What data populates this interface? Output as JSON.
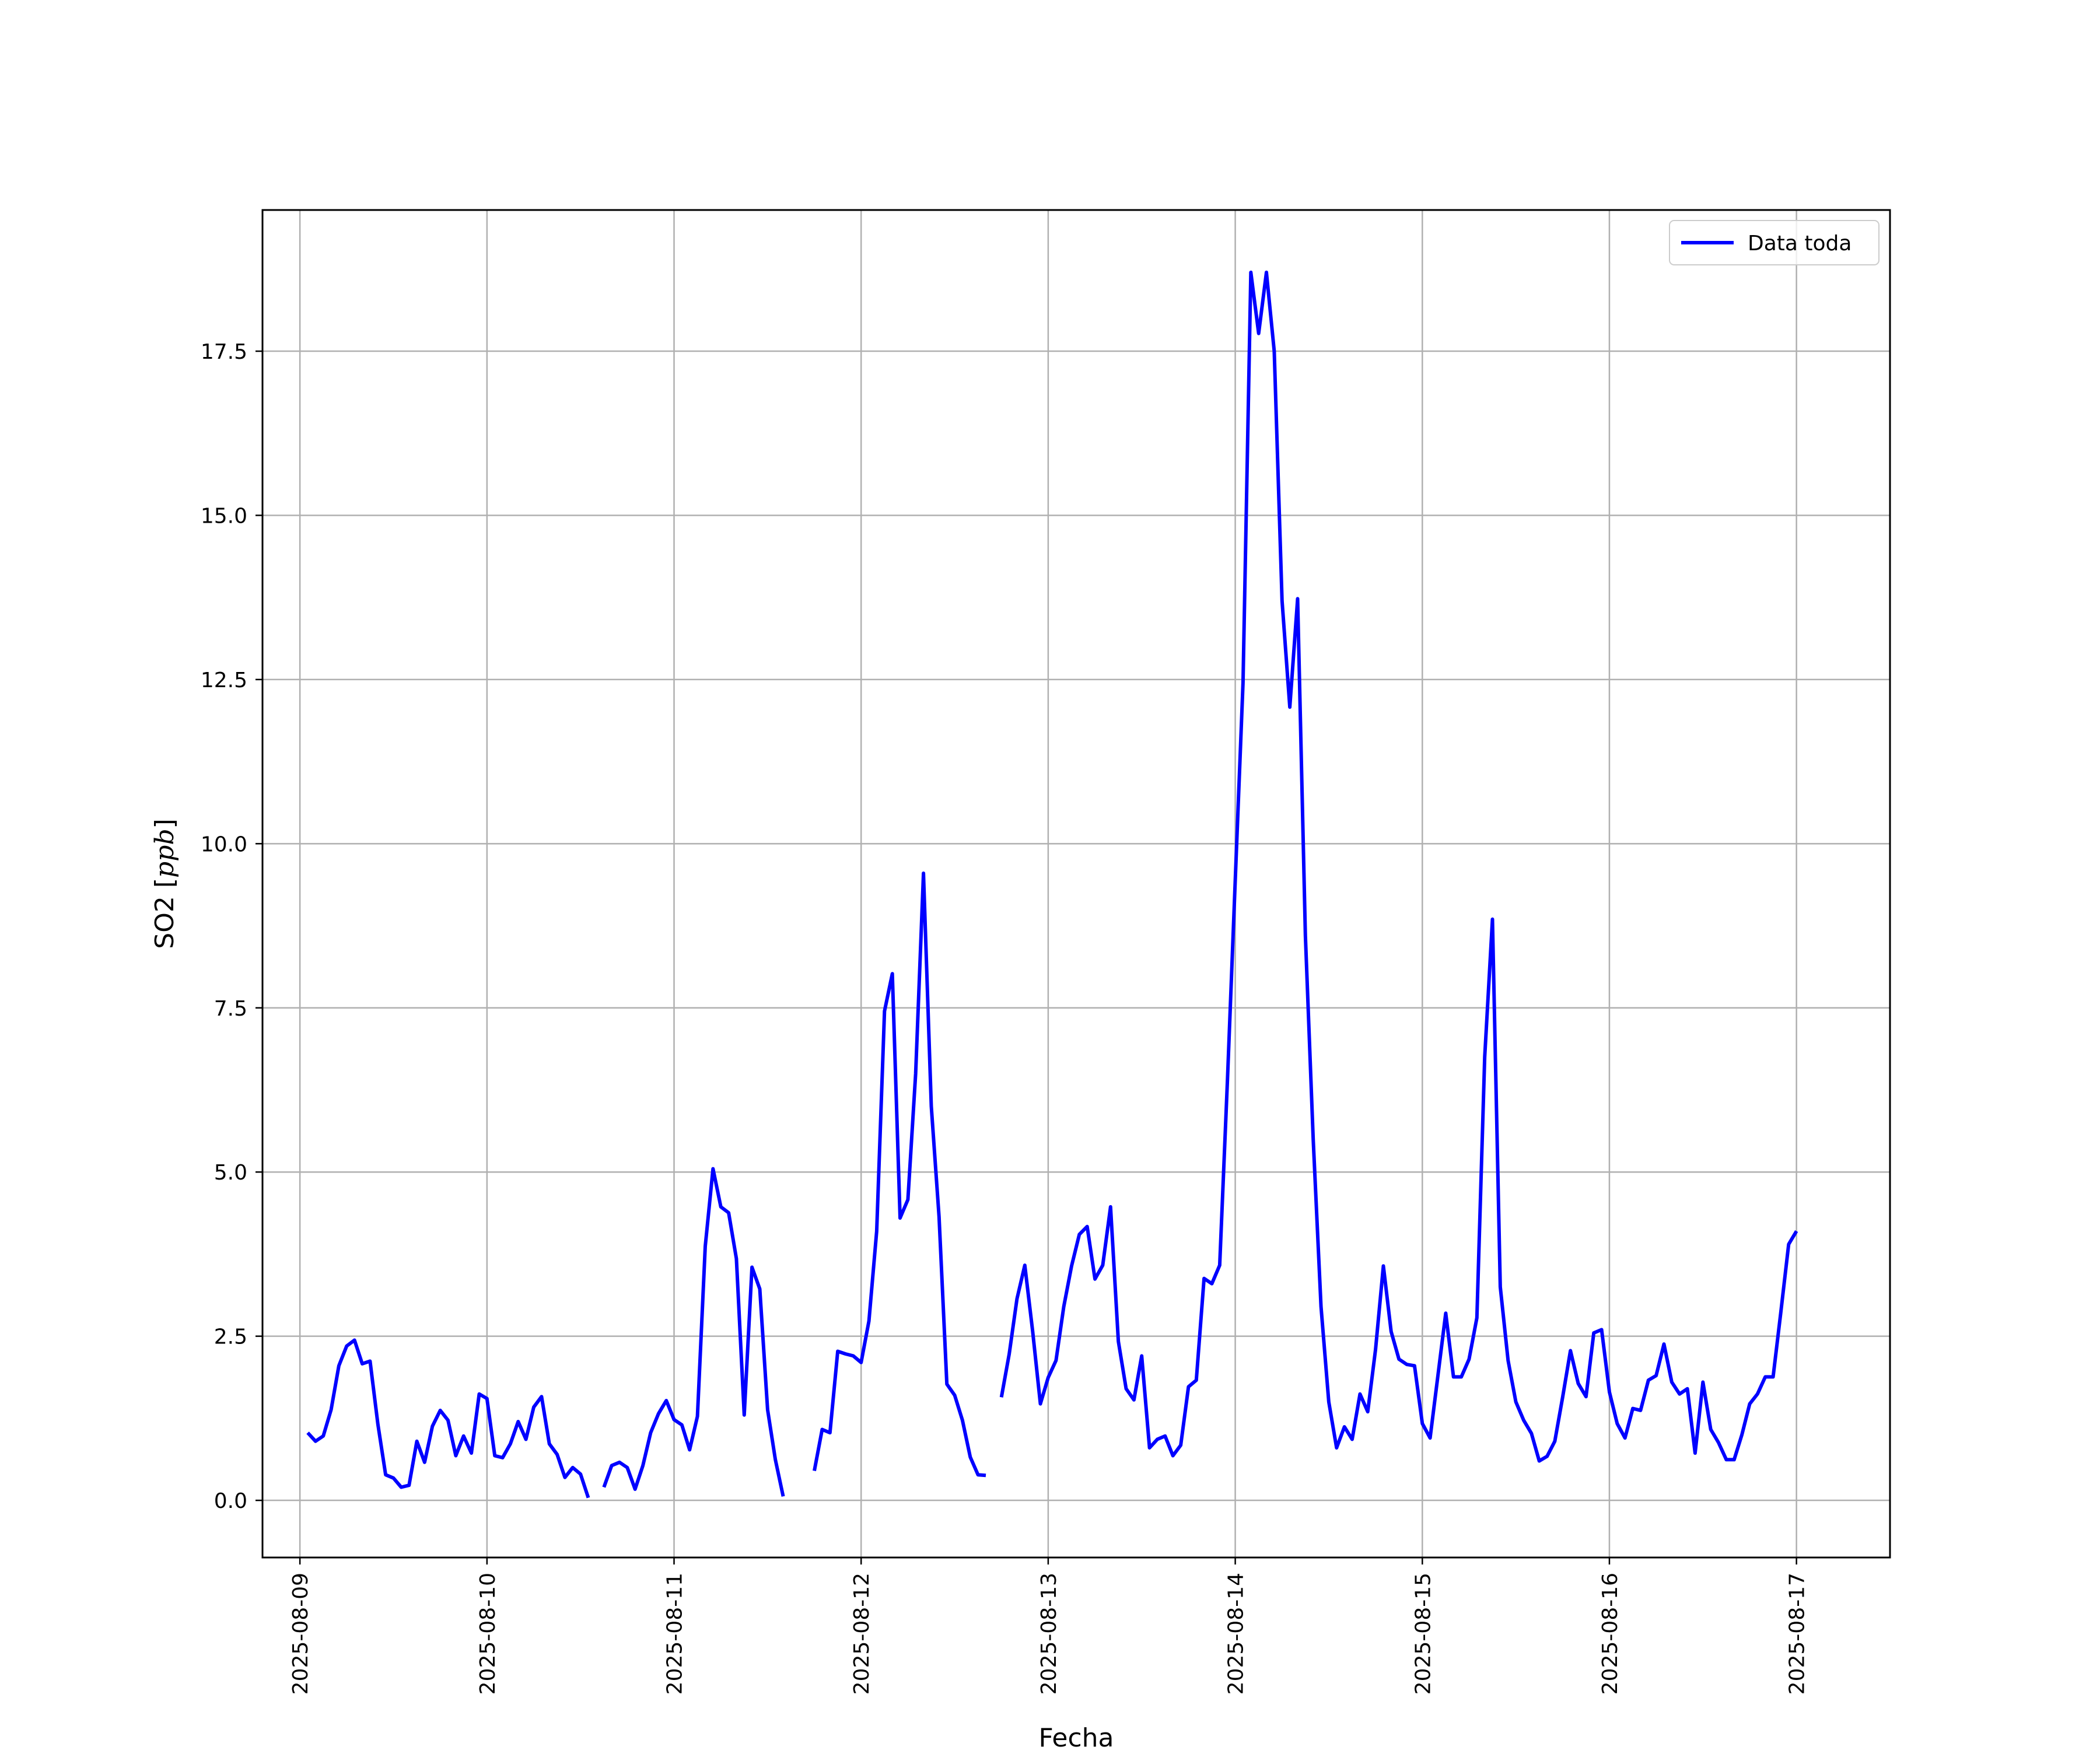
{
  "chart_data": {
    "type": "line",
    "xlabel": "Fecha",
    "ylabel": "SO2 [ppb]",
    "ylabel_unit": "ppb",
    "ylabel_prefix": "SO2 ",
    "xlim": [
      "2025-08-08T19:12",
      "2025-08-17T12:00"
    ],
    "ylim": [
      -0.87,
      19.65
    ],
    "x_ticks": [
      "2025-08-09",
      "2025-08-10",
      "2025-08-11",
      "2025-08-12",
      "2025-08-13",
      "2025-08-14",
      "2025-08-15",
      "2025-08-16",
      "2025-08-17"
    ],
    "y_ticks": [
      0.0,
      2.5,
      5.0,
      7.5,
      10.0,
      12.5,
      15.0,
      17.5
    ],
    "y_tick_labels": [
      "0.0",
      "2.5",
      "5.0",
      "7.5",
      "10.0",
      "12.5",
      "15.0",
      "17.5"
    ],
    "grid": true,
    "legend_placement": "top-right",
    "colors": {
      "series": "#0000ff",
      "grid": "#b0b0b0",
      "axes": "#000000"
    },
    "series": [
      {
        "name": "Data toda",
        "points": [
          [
            "2025-08-09T01:00",
            1.03
          ],
          [
            "2025-08-09T02:00",
            0.9
          ],
          [
            "2025-08-09T03:00",
            0.98
          ],
          [
            "2025-08-09T04:00",
            1.38
          ],
          [
            "2025-08-09T05:00",
            2.05
          ],
          [
            "2025-08-09T06:00",
            2.35
          ],
          [
            "2025-08-09T07:00",
            2.44
          ],
          [
            "2025-08-09T08:00",
            2.08
          ],
          [
            "2025-08-09T09:00",
            2.12
          ],
          [
            "2025-08-09T10:00",
            1.16
          ],
          [
            "2025-08-09T11:00",
            0.39
          ],
          [
            "2025-08-09T12:00",
            0.34
          ],
          [
            "2025-08-09T13:00",
            0.2
          ],
          [
            "2025-08-09T14:00",
            0.23
          ],
          [
            "2025-08-09T15:00",
            0.9
          ],
          [
            "2025-08-09T16:00",
            0.58
          ],
          [
            "2025-08-09T17:00",
            1.13
          ],
          [
            "2025-08-09T18:00",
            1.37
          ],
          [
            "2025-08-09T19:00",
            1.22
          ],
          [
            "2025-08-09T20:00",
            0.68
          ],
          [
            "2025-08-09T21:00",
            0.98
          ],
          [
            "2025-08-09T22:00",
            0.72
          ],
          [
            "2025-08-09T23:00",
            1.62
          ],
          [
            "2025-08-10T00:00",
            1.55
          ],
          [
            "2025-08-10T01:00",
            0.68
          ],
          [
            "2025-08-10T02:00",
            0.65
          ],
          [
            "2025-08-10T03:00",
            0.86
          ],
          [
            "2025-08-10T04:00",
            1.2
          ],
          [
            "2025-08-10T05:00",
            0.93
          ],
          [
            "2025-08-10T06:00",
            1.42
          ],
          [
            "2025-08-10T07:00",
            1.58
          ],
          [
            "2025-08-10T08:00",
            0.86
          ],
          [
            "2025-08-10T09:00",
            0.7
          ],
          [
            "2025-08-10T10:00",
            0.35
          ],
          [
            "2025-08-10T11:00",
            0.5
          ],
          [
            "2025-08-10T12:00",
            0.4
          ],
          [
            "2025-08-10T13:00",
            0.04
          ],
          null,
          [
            "2025-08-10T15:00",
            0.2
          ],
          [
            "2025-08-10T16:00",
            0.53
          ],
          [
            "2025-08-10T17:00",
            0.58
          ],
          [
            "2025-08-10T18:00",
            0.5
          ],
          [
            "2025-08-10T19:00",
            0.17
          ],
          [
            "2025-08-10T20:00",
            0.53
          ],
          [
            "2025-08-10T21:00",
            1.03
          ],
          [
            "2025-08-10T22:00",
            1.32
          ],
          [
            "2025-08-10T23:00",
            1.52
          ],
          [
            "2025-08-11T00:00",
            1.23
          ],
          [
            "2025-08-11T01:00",
            1.15
          ],
          [
            "2025-08-11T02:00",
            0.77
          ],
          [
            "2025-08-11T03:00",
            1.28
          ],
          [
            "2025-08-11T04:00",
            3.87
          ],
          [
            "2025-08-11T05:00",
            5.05
          ],
          [
            "2025-08-11T06:00",
            4.47
          ],
          [
            "2025-08-11T07:00",
            4.38
          ],
          [
            "2025-08-11T08:00",
            3.68
          ],
          [
            "2025-08-11T09:00",
            1.3
          ],
          [
            "2025-08-11T10:00",
            3.55
          ],
          [
            "2025-08-11T11:00",
            3.22
          ],
          [
            "2025-08-11T12:00",
            1.38
          ],
          [
            "2025-08-11T13:00",
            0.62
          ],
          [
            "2025-08-11T14:00",
            0.06
          ],
          null,
          [
            "2025-08-11T18:00",
            0.45
          ],
          [
            "2025-08-11T19:00",
            1.08
          ],
          [
            "2025-08-11T20:00",
            1.03
          ],
          [
            "2025-08-11T21:00",
            2.27
          ],
          [
            "2025-08-11T22:00",
            2.23
          ],
          [
            "2025-08-11T23:00",
            2.2
          ],
          [
            "2025-08-12T00:00",
            2.1
          ],
          [
            "2025-08-12T01:00",
            2.73
          ],
          [
            "2025-08-12T02:00",
            4.1
          ],
          [
            "2025-08-12T03:00",
            7.45
          ],
          [
            "2025-08-12T04:00",
            8.02
          ],
          [
            "2025-08-12T05:00",
            4.3
          ],
          [
            "2025-08-12T06:00",
            4.58
          ],
          [
            "2025-08-12T07:00",
            6.5
          ],
          [
            "2025-08-12T08:00",
            9.55
          ],
          [
            "2025-08-12T09:00",
            6.0
          ],
          [
            "2025-08-12T10:00",
            4.32
          ],
          [
            "2025-08-12T11:00",
            1.77
          ],
          [
            "2025-08-12T12:00",
            1.6
          ],
          [
            "2025-08-12T13:00",
            1.22
          ],
          [
            "2025-08-12T14:00",
            0.66
          ],
          [
            "2025-08-12T15:00",
            0.39
          ],
          [
            "2025-08-12T16:00",
            0.38
          ],
          null,
          [
            "2025-08-12T18:00",
            1.57
          ],
          [
            "2025-08-12T19:00",
            2.23
          ],
          [
            "2025-08-12T20:00",
            3.07
          ],
          [
            "2025-08-12T21:00",
            3.58
          ],
          [
            "2025-08-12T22:00",
            2.58
          ],
          [
            "2025-08-12T23:00",
            1.47
          ],
          [
            "2025-08-13T00:00",
            1.87
          ],
          [
            "2025-08-13T01:00",
            2.13
          ],
          [
            "2025-08-13T02:00",
            2.95
          ],
          [
            "2025-08-13T03:00",
            3.57
          ],
          [
            "2025-08-13T04:00",
            4.05
          ],
          [
            "2025-08-13T05:00",
            4.17
          ],
          [
            "2025-08-13T06:00",
            3.37
          ],
          [
            "2025-08-13T07:00",
            3.58
          ],
          [
            "2025-08-13T08:00",
            4.47
          ],
          [
            "2025-08-13T09:00",
            2.42
          ],
          [
            "2025-08-13T10:00",
            1.7
          ],
          [
            "2025-08-13T11:00",
            1.53
          ],
          [
            "2025-08-13T12:00",
            2.2
          ],
          [
            "2025-08-13T13:00",
            0.8
          ],
          [
            "2025-08-13T14:00",
            0.93
          ],
          [
            "2025-08-13T15:00",
            0.98
          ],
          [
            "2025-08-13T16:00",
            0.68
          ],
          [
            "2025-08-13T17:00",
            0.84
          ],
          [
            "2025-08-13T18:00",
            1.73
          ],
          [
            "2025-08-13T19:00",
            1.83
          ],
          [
            "2025-08-13T20:00",
            3.38
          ],
          [
            "2025-08-13T21:00",
            3.3
          ],
          [
            "2025-08-13T22:00",
            3.58
          ],
          [
            "2025-08-13T23:00",
            6.4
          ],
          [
            "2025-08-14T00:00",
            9.45
          ],
          [
            "2025-08-14T01:00",
            12.45
          ],
          [
            "2025-08-14T02:00",
            18.7
          ],
          [
            "2025-08-14T03:00",
            17.77
          ],
          [
            "2025-08-14T04:00",
            18.7
          ],
          [
            "2025-08-14T05:00",
            17.5
          ],
          [
            "2025-08-14T06:00",
            13.7
          ],
          [
            "2025-08-14T07:00",
            12.08
          ],
          [
            "2025-08-14T08:00",
            13.73
          ],
          [
            "2025-08-14T09:00",
            8.6
          ],
          [
            "2025-08-14T10:00",
            5.5
          ],
          [
            "2025-08-14T11:00",
            2.95
          ],
          [
            "2025-08-14T12:00",
            1.5
          ],
          [
            "2025-08-14T13:00",
            0.8
          ],
          [
            "2025-08-14T14:00",
            1.12
          ],
          [
            "2025-08-14T15:00",
            0.93
          ],
          [
            "2025-08-14T16:00",
            1.62
          ],
          [
            "2025-08-14T17:00",
            1.35
          ],
          [
            "2025-08-14T18:00",
            2.3
          ],
          [
            "2025-08-14T19:00",
            3.57
          ],
          [
            "2025-08-14T20:00",
            2.57
          ],
          [
            "2025-08-14T21:00",
            2.15
          ],
          [
            "2025-08-14T22:00",
            2.07
          ],
          [
            "2025-08-14T23:00",
            2.05
          ],
          [
            "2025-08-15T00:00",
            1.17
          ],
          [
            "2025-08-15T01:00",
            0.95
          ],
          [
            "2025-08-15T02:00",
            1.9
          ],
          [
            "2025-08-15T03:00",
            2.85
          ],
          [
            "2025-08-15T04:00",
            1.88
          ],
          [
            "2025-08-15T05:00",
            1.88
          ],
          [
            "2025-08-15T06:00",
            2.15
          ],
          [
            "2025-08-15T07:00",
            2.78
          ],
          [
            "2025-08-15T08:00",
            6.75
          ],
          [
            "2025-08-15T09:00",
            8.85
          ],
          [
            "2025-08-15T10:00",
            3.25
          ],
          [
            "2025-08-15T11:00",
            2.13
          ],
          [
            "2025-08-15T12:00",
            1.5
          ],
          [
            "2025-08-15T13:00",
            1.22
          ],
          [
            "2025-08-15T14:00",
            1.02
          ],
          [
            "2025-08-15T15:00",
            0.6
          ],
          [
            "2025-08-15T16:00",
            0.67
          ],
          [
            "2025-08-15T17:00",
            0.9
          ],
          [
            "2025-08-15T18:00",
            1.57
          ],
          [
            "2025-08-15T19:00",
            2.28
          ],
          [
            "2025-08-15T20:00",
            1.78
          ],
          [
            "2025-08-15T21:00",
            1.58
          ],
          [
            "2025-08-15T22:00",
            2.55
          ],
          [
            "2025-08-15T23:00",
            2.6
          ],
          [
            "2025-08-16T00:00",
            1.65
          ],
          [
            "2025-08-16T01:00",
            1.17
          ],
          [
            "2025-08-16T02:00",
            0.95
          ],
          [
            "2025-08-16T03:00",
            1.4
          ],
          [
            "2025-08-16T04:00",
            1.37
          ],
          [
            "2025-08-16T05:00",
            1.83
          ],
          [
            "2025-08-16T06:00",
            1.9
          ],
          [
            "2025-08-16T07:00",
            2.38
          ],
          [
            "2025-08-16T08:00",
            1.8
          ],
          [
            "2025-08-16T09:00",
            1.62
          ],
          [
            "2025-08-16T10:00",
            1.7
          ],
          [
            "2025-08-16T11:00",
            0.72
          ],
          [
            "2025-08-16T12:00",
            1.8
          ],
          [
            "2025-08-16T13:00",
            1.08
          ],
          [
            "2025-08-16T14:00",
            0.88
          ],
          [
            "2025-08-16T15:00",
            0.62
          ],
          [
            "2025-08-16T16:00",
            0.62
          ],
          [
            "2025-08-16T17:00",
            1.0
          ],
          [
            "2025-08-16T18:00",
            1.47
          ],
          [
            "2025-08-16T19:00",
            1.62
          ],
          [
            "2025-08-16T20:00",
            1.88
          ],
          [
            "2025-08-16T21:00",
            1.88
          ],
          [
            "2025-08-16T22:00",
            2.87
          ],
          [
            "2025-08-16T23:00",
            3.9
          ],
          [
            "2025-08-17T00:00",
            4.1
          ]
        ]
      }
    ]
  }
}
